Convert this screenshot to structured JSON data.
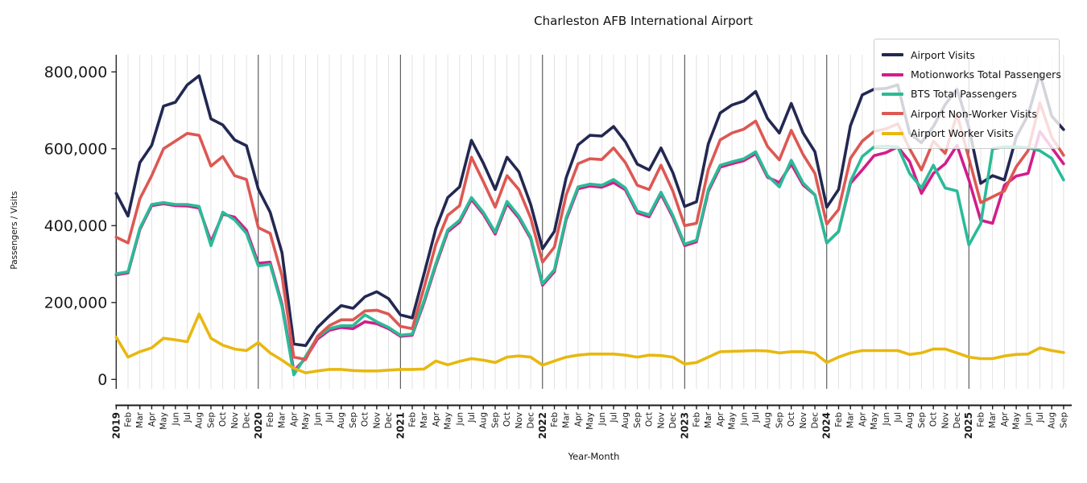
{
  "title": "Charleston AFB International Airport",
  "chart_data": {
    "type": "line",
    "title": "Charleston AFB International Airport",
    "xlabel": "Year-Month",
    "ylabel": "Passengers / Visits",
    "x_start": "2019-01",
    "x_end": "2025-09",
    "n_points": 81,
    "ylim": [
      -25000,
      845000
    ],
    "grid": "vertical gridline per month, darker vertical line at each January",
    "legend_position": "upper right",
    "yticks": [
      {
        "value": 0,
        "label": "0"
      },
      {
        "value": 200000,
        "label": "200,000"
      },
      {
        "value": 400000,
        "label": "400,000"
      },
      {
        "value": 600000,
        "label": "600,000"
      },
      {
        "value": 800000,
        "label": "800,000"
      }
    ],
    "x_tick_labels": [
      "2019",
      "Feb",
      "Mar",
      "Apr",
      "May",
      "Jun",
      "Jul",
      "Aug",
      "Sep",
      "Oct",
      "Nov",
      "Dec",
      "2020",
      "Feb",
      "Mar",
      "Apr",
      "May",
      "Jun",
      "Jul",
      "Aug",
      "Sep",
      "Oct",
      "Nov",
      "Dec",
      "2021",
      "Feb",
      "Mar",
      "Apr",
      "May",
      "Jun",
      "Jul",
      "Aug",
      "Sep",
      "Oct",
      "Nov",
      "Dec",
      "2022",
      "Feb",
      "Mar",
      "Apr",
      "May",
      "Jun",
      "Jul",
      "Aug",
      "Sep",
      "Oct",
      "Nov",
      "Dec",
      "2023",
      "Feb",
      "Mar",
      "Apr",
      "May",
      "Jun",
      "Jul",
      "Aug",
      "Sep",
      "Oct",
      "Nov",
      "Dec",
      "2024",
      "Feb",
      "Mar",
      "Apr",
      "May",
      "Jun",
      "Jul",
      "Aug",
      "Sep",
      "Oct",
      "Nov",
      "Dec",
      "2025",
      "Feb",
      "Mar",
      "Apr",
      "May",
      "Jun",
      "Jul",
      "Aug",
      "Sep"
    ],
    "series": [
      {
        "name": "Airport Visits",
        "color": "#232852",
        "values": [
          484000,
          425000,
          564000,
          609000,
          711000,
          721000,
          766000,
          790000,
          678000,
          662000,
          623000,
          608000,
          495000,
          435000,
          330000,
          92000,
          88000,
          135000,
          165000,
          192000,
          185000,
          215000,
          228000,
          210000,
          168000,
          160000,
          275000,
          393000,
          473000,
          501000,
          622000,
          563000,
          494000,
          578000,
          540000,
          455000,
          340000,
          385000,
          525000,
          610000,
          635000,
          633000,
          658000,
          618000,
          560000,
          545000,
          602000,
          538000,
          450000,
          462000,
          613000,
          693000,
          714000,
          724000,
          749000,
          679000,
          641000,
          718000,
          641000,
          592000,
          448000,
          494000,
          660000,
          740000,
          755000,
          757000,
          766000,
          640000,
          616000,
          658000,
          715000,
          755000,
          655000,
          510000,
          530000,
          519000,
          630000,
          688000,
          795000,
          685000,
          650000
        ]
      },
      {
        "name": "Motionworks Total Passengers",
        "color": "#d21d8b",
        "values": [
          272000,
          277000,
          390000,
          452000,
          457000,
          452000,
          451000,
          446000,
          358000,
          430000,
          422000,
          388000,
          302000,
          305000,
          196000,
          22000,
          55000,
          105000,
          128000,
          135000,
          132000,
          150000,
          145000,
          132000,
          112000,
          115000,
          200000,
          297000,
          384000,
          409000,
          468000,
          430000,
          378000,
          457000,
          420000,
          366000,
          245000,
          280000,
          416000,
          496000,
          503000,
          500000,
          512000,
          493000,
          433000,
          423000,
          482000,
          422000,
          348000,
          358000,
          489000,
          552000,
          561000,
          569000,
          587000,
          526000,
          512000,
          560000,
          506000,
          480000,
          355000,
          385000,
          510000,
          545000,
          582000,
          590000,
          605000,
          567000,
          484000,
          536000,
          561000,
          609000,
          519000,
          414000,
          406000,
          505000,
          529000,
          536000,
          645000,
          603000,
          561000
        ]
      },
      {
        "name": "BTS Total Passengers",
        "color": "#2abb97",
        "values": [
          275000,
          280000,
          393000,
          455000,
          460000,
          455000,
          455000,
          450000,
          348000,
          435000,
          415000,
          380000,
          295000,
          300000,
          190000,
          12000,
          60000,
          110000,
          132000,
          140000,
          140000,
          168000,
          150000,
          135000,
          115000,
          118000,
          205000,
          302000,
          389000,
          414000,
          473000,
          435000,
          383000,
          463000,
          425000,
          370000,
          249000,
          285000,
          421000,
          501000,
          508000,
          505000,
          520000,
          498000,
          438000,
          428000,
          487000,
          427000,
          352000,
          362000,
          494000,
          557000,
          566000,
          574000,
          592000,
          530000,
          501000,
          570000,
          511000,
          480000,
          355000,
          385000,
          515000,
          580000,
          605000,
          607000,
          605000,
          536000,
          498000,
          557000,
          498000,
          490000,
          350000,
          405000,
          600000,
          605000,
          605000,
          603000,
          595000,
          575000,
          519000
        ]
      },
      {
        "name": "Airport Non-Worker Visits",
        "color": "#dd5853",
        "values": [
          370000,
          355000,
          470000,
          530000,
          600000,
          620000,
          640000,
          635000,
          555000,
          580000,
          530000,
          520000,
          395000,
          380000,
          270000,
          58000,
          52000,
          112000,
          140000,
          155000,
          155000,
          178000,
          180000,
          170000,
          138000,
          132000,
          239000,
          352000,
          427000,
          452000,
          578000,
          515000,
          448000,
          530000,
          494000,
          420000,
          305000,
          344000,
          480000,
          561000,
          574000,
          572000,
          602000,
          564000,
          505000,
          494000,
          557000,
          490000,
          400000,
          406000,
          546000,
          623000,
          641000,
          651000,
          672000,
          606000,
          571000,
          648000,
          585000,
          536000,
          404000,
          442000,
          575000,
          620000,
          645000,
          652000,
          665000,
          600000,
          545000,
          620000,
          588000,
          690000,
          575000,
          460000,
          475000,
          490000,
          553000,
          595000,
          720000,
          630000,
          583000
        ]
      },
      {
        "name": "Airport Worker Visits",
        "color": "#e8b810",
        "values": [
          110000,
          58000,
          72000,
          82000,
          107000,
          103000,
          98000,
          170000,
          107000,
          89000,
          79000,
          75000,
          96000,
          69000,
          50000,
          29000,
          17000,
          22000,
          26000,
          26000,
          23000,
          22000,
          22000,
          24000,
          26000,
          26000,
          27000,
          48000,
          38000,
          47000,
          54000,
          50000,
          44000,
          58000,
          61000,
          58000,
          37000,
          48000,
          58000,
          63000,
          66000,
          66000,
          66000,
          63000,
          58000,
          63000,
          62000,
          58000,
          40000,
          44000,
          58000,
          72000,
          73000,
          74000,
          75000,
          74000,
          69000,
          72000,
          72000,
          68000,
          44000,
          58000,
          69000,
          75000,
          75000,
          75000,
          75000,
          65000,
          69000,
          79000,
          79000,
          69000,
          58000,
          54000,
          54000,
          61000,
          65000,
          66000,
          82000,
          75000,
          70000
        ]
      }
    ]
  },
  "colors": {
    "background": "#ffffff",
    "gridline": "#dcdcdc",
    "year_gridline": "#2a2a2a",
    "axis": "#1a1a1a",
    "tick_label": "#1a1a1a",
    "legend_border": "#cccccc"
  }
}
